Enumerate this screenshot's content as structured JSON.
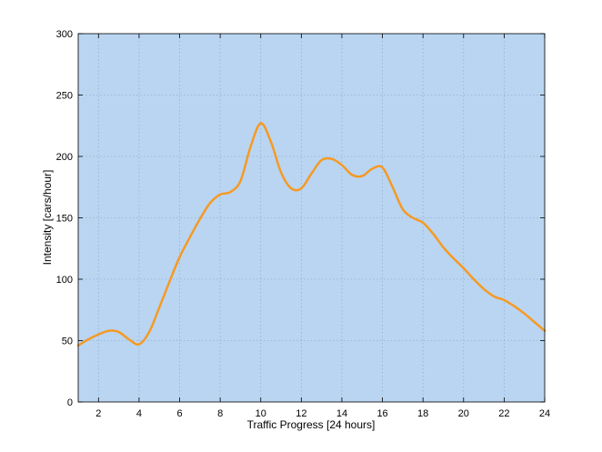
{
  "chart_data": {
    "type": "line",
    "title": "",
    "xlabel": "Traffic Progress [24 hours]",
    "ylabel": "Intensity [cars/hour]",
    "xlim": [
      1,
      24
    ],
    "ylim": [
      0,
      300
    ],
    "x_ticks": [
      2,
      4,
      6,
      8,
      10,
      12,
      14,
      16,
      18,
      20,
      22,
      24
    ],
    "y_ticks": [
      0,
      50,
      100,
      150,
      200,
      250,
      300
    ],
    "grid": true,
    "legend": false,
    "background_color": "#bad5f2",
    "line_color": "#f59a23",
    "series": [
      {
        "x": [
          1,
          1.5,
          2,
          2.5,
          3,
          3.5,
          4,
          4.5,
          5,
          5.5,
          6,
          6.5,
          7,
          7.5,
          8,
          8.5,
          9,
          9.5,
          10,
          10.5,
          11,
          11.5,
          12,
          12.5,
          13,
          13.5,
          14,
          14.5,
          15,
          15.5,
          16,
          16.5,
          17,
          17.5,
          18,
          18.5,
          19,
          19.5,
          20,
          20.5,
          21,
          21.5,
          22,
          22.5,
          23,
          23.5,
          24
        ],
        "y": [
          46,
          51,
          55,
          58,
          57,
          51,
          47,
          57,
          77,
          98,
          118,
          134,
          149,
          162,
          169,
          171,
          180,
          208,
          227,
          212,
          187,
          174,
          174,
          186,
          197,
          198,
          193,
          185,
          184,
          190,
          191,
          175,
          157,
          150,
          146,
          137,
          126,
          117,
          109,
          100,
          92,
          86,
          83,
          78,
          72,
          65,
          58
        ]
      }
    ]
  }
}
